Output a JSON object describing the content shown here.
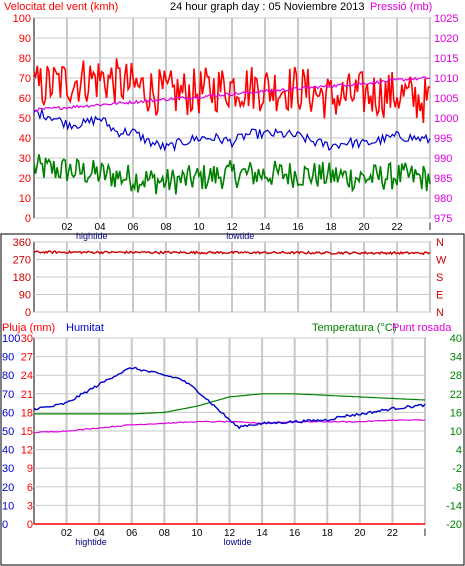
{
  "colors": {
    "wind": "#ff0000",
    "pressure": "#e000e0",
    "humidity": "#0000cc",
    "temperature": "#008000",
    "dewpoint": "#e000e0",
    "rain": "#ff0000",
    "direction": "#cc0000",
    "grid": "#c8c8c8",
    "frame": "#000000",
    "title": "#000000"
  },
  "chart_data": [
    {
      "type": "line",
      "title": "24 hour graph day : 05 Noviembre 2013",
      "left_axis_label": "Velocitat del vent (kmh)",
      "right_axis_label": "Pressió (mb)",
      "x_ticks": [
        "02",
        "04",
        "06",
        "08",
        "10",
        "12",
        "14",
        "16",
        "18",
        "20",
        "22",
        "24"
      ],
      "x_last_tick_label": "l",
      "tide_labels": [
        {
          "hour": 3.5,
          "text": "hightide"
        },
        {
          "hour": 12.5,
          "text": "lowtide"
        }
      ],
      "ylim_left": [
        0,
        100
      ],
      "yticks_left": [
        "0",
        "10",
        "20",
        "30",
        "40",
        "50",
        "60",
        "70",
        "80",
        "90",
        "100"
      ],
      "ylim_right": [
        975,
        1025
      ],
      "yticks_right": [
        "975",
        "980",
        "985",
        "990",
        "995",
        "1000",
        "1005",
        "1010",
        "1015",
        "1020",
        "1025"
      ],
      "grid": true,
      "series": [
        {
          "name": "gust",
          "color_key": "wind",
          "axis": "left",
          "hours": [
            0,
            2,
            4,
            6,
            8,
            10,
            12,
            14,
            16,
            18,
            20,
            22,
            24
          ],
          "values": [
            65,
            68,
            70,
            66,
            62,
            63,
            66,
            65,
            65,
            60,
            62,
            62,
            58
          ]
        },
        {
          "name": "wind speed",
          "color_key": "humidity",
          "axis": "left",
          "hours": [
            0,
            1,
            2,
            3,
            4,
            5,
            6,
            7,
            8,
            9,
            10,
            11,
            12,
            13,
            14,
            15,
            16,
            17,
            18,
            19,
            20,
            21,
            22,
            23,
            24
          ],
          "values": [
            53,
            51,
            47,
            47,
            50,
            43,
            43,
            38,
            35,
            38,
            40,
            40,
            38,
            42,
            42,
            42,
            41,
            38,
            36,
            38,
            37,
            39,
            41,
            40,
            39
          ]
        },
        {
          "name": "average",
          "color_key": "temperature",
          "axis": "left",
          "hours": [
            0,
            2,
            4,
            6,
            8,
            10,
            12,
            14,
            16,
            18,
            20,
            22,
            24
          ],
          "values": [
            25,
            24,
            22,
            20,
            18,
            20,
            22,
            22,
            22,
            21,
            20,
            21,
            20
          ]
        },
        {
          "name": "pressure",
          "color_key": "pressure",
          "axis": "right",
          "hours": [
            0,
            3,
            6,
            9,
            12,
            15,
            18,
            21,
            22,
            24
          ],
          "values": [
            1002,
            1003,
            1004,
            1005,
            1006,
            1007,
            1008,
            1009,
            1009.5,
            1010
          ]
        }
      ]
    },
    {
      "type": "line",
      "title": "",
      "yticks_left": [
        "0",
        "90",
        "180",
        "270",
        "360"
      ],
      "ylim_left": [
        0,
        360
      ],
      "right_letters": [
        "N",
        "W",
        "S",
        "E",
        "N"
      ],
      "grid": true,
      "series": [
        {
          "name": "wind direction",
          "color_key": "direction",
          "axis": "left",
          "hours": [
            0,
            24
          ],
          "values": [
            308,
            303
          ]
        }
      ]
    },
    {
      "type": "line",
      "title": "",
      "left_labels": [
        "Pluja (mm)",
        "Humitat"
      ],
      "right_labels": [
        "Temperatura (°C)",
        "Punt rosada"
      ],
      "ylim_humidity": [
        0,
        100
      ],
      "yticks_humidity": [
        "0",
        "10",
        "20",
        "30",
        "40",
        "50",
        "60",
        "70",
        "80",
        "90",
        "100"
      ],
      "ylim_rain": [
        0,
        30
      ],
      "yticks_rain": [
        "0",
        "3",
        "6",
        "9",
        "12",
        "15",
        "18",
        "21",
        "24",
        "27",
        "30"
      ],
      "ylim_temperature": [
        -20,
        40
      ],
      "yticks_temperature": [
        "-20",
        "-14",
        "-8",
        "-2",
        "4",
        "10",
        "16",
        "22",
        "28",
        "34",
        "40"
      ],
      "x_ticks": [
        "02",
        "04",
        "06",
        "08",
        "10",
        "12",
        "14",
        "16",
        "18",
        "20",
        "22",
        "24"
      ],
      "x_last_tick_label": "l",
      "tide_labels": [
        {
          "hour": 3.5,
          "text": "hightide"
        },
        {
          "hour": 12.5,
          "text": "lowtide"
        }
      ],
      "grid": true,
      "series": [
        {
          "name": "Humitat",
          "color_key": "humidity",
          "axis": "humidity",
          "hours": [
            0,
            1,
            2,
            3,
            4,
            5,
            6,
            7,
            8,
            9,
            10,
            11,
            12,
            12.5,
            13,
            14,
            16,
            18,
            19,
            20,
            22,
            24
          ],
          "values": [
            62,
            63,
            65,
            70,
            75,
            80,
            84,
            82,
            80,
            78,
            72,
            64,
            56,
            52,
            53,
            54,
            55,
            56,
            58,
            59,
            62,
            64
          ]
        },
        {
          "name": "Temperatura",
          "color_key": "temperature",
          "axis": "temperature",
          "hours": [
            0,
            2,
            4,
            6,
            8,
            10,
            12,
            14,
            16,
            18,
            20,
            22,
            24
          ],
          "values": [
            15.5,
            15.5,
            15.5,
            15.5,
            16,
            18,
            21,
            22,
            22,
            21.5,
            21,
            20.5,
            20
          ]
        },
        {
          "name": "Punt rosada",
          "color_key": "dewpoint",
          "axis": "temperature",
          "hours": [
            0,
            2,
            4,
            6,
            8,
            10,
            12,
            14,
            16,
            18,
            20,
            22,
            24
          ],
          "values": [
            9.5,
            10,
            11,
            12,
            12.5,
            13,
            13,
            12.5,
            13,
            13,
            13,
            13.5,
            13.5
          ]
        },
        {
          "name": "Pluja",
          "color_key": "rain",
          "axis": "rain",
          "hours": [
            0,
            24
          ],
          "values": [
            0,
            0
          ]
        }
      ]
    }
  ]
}
